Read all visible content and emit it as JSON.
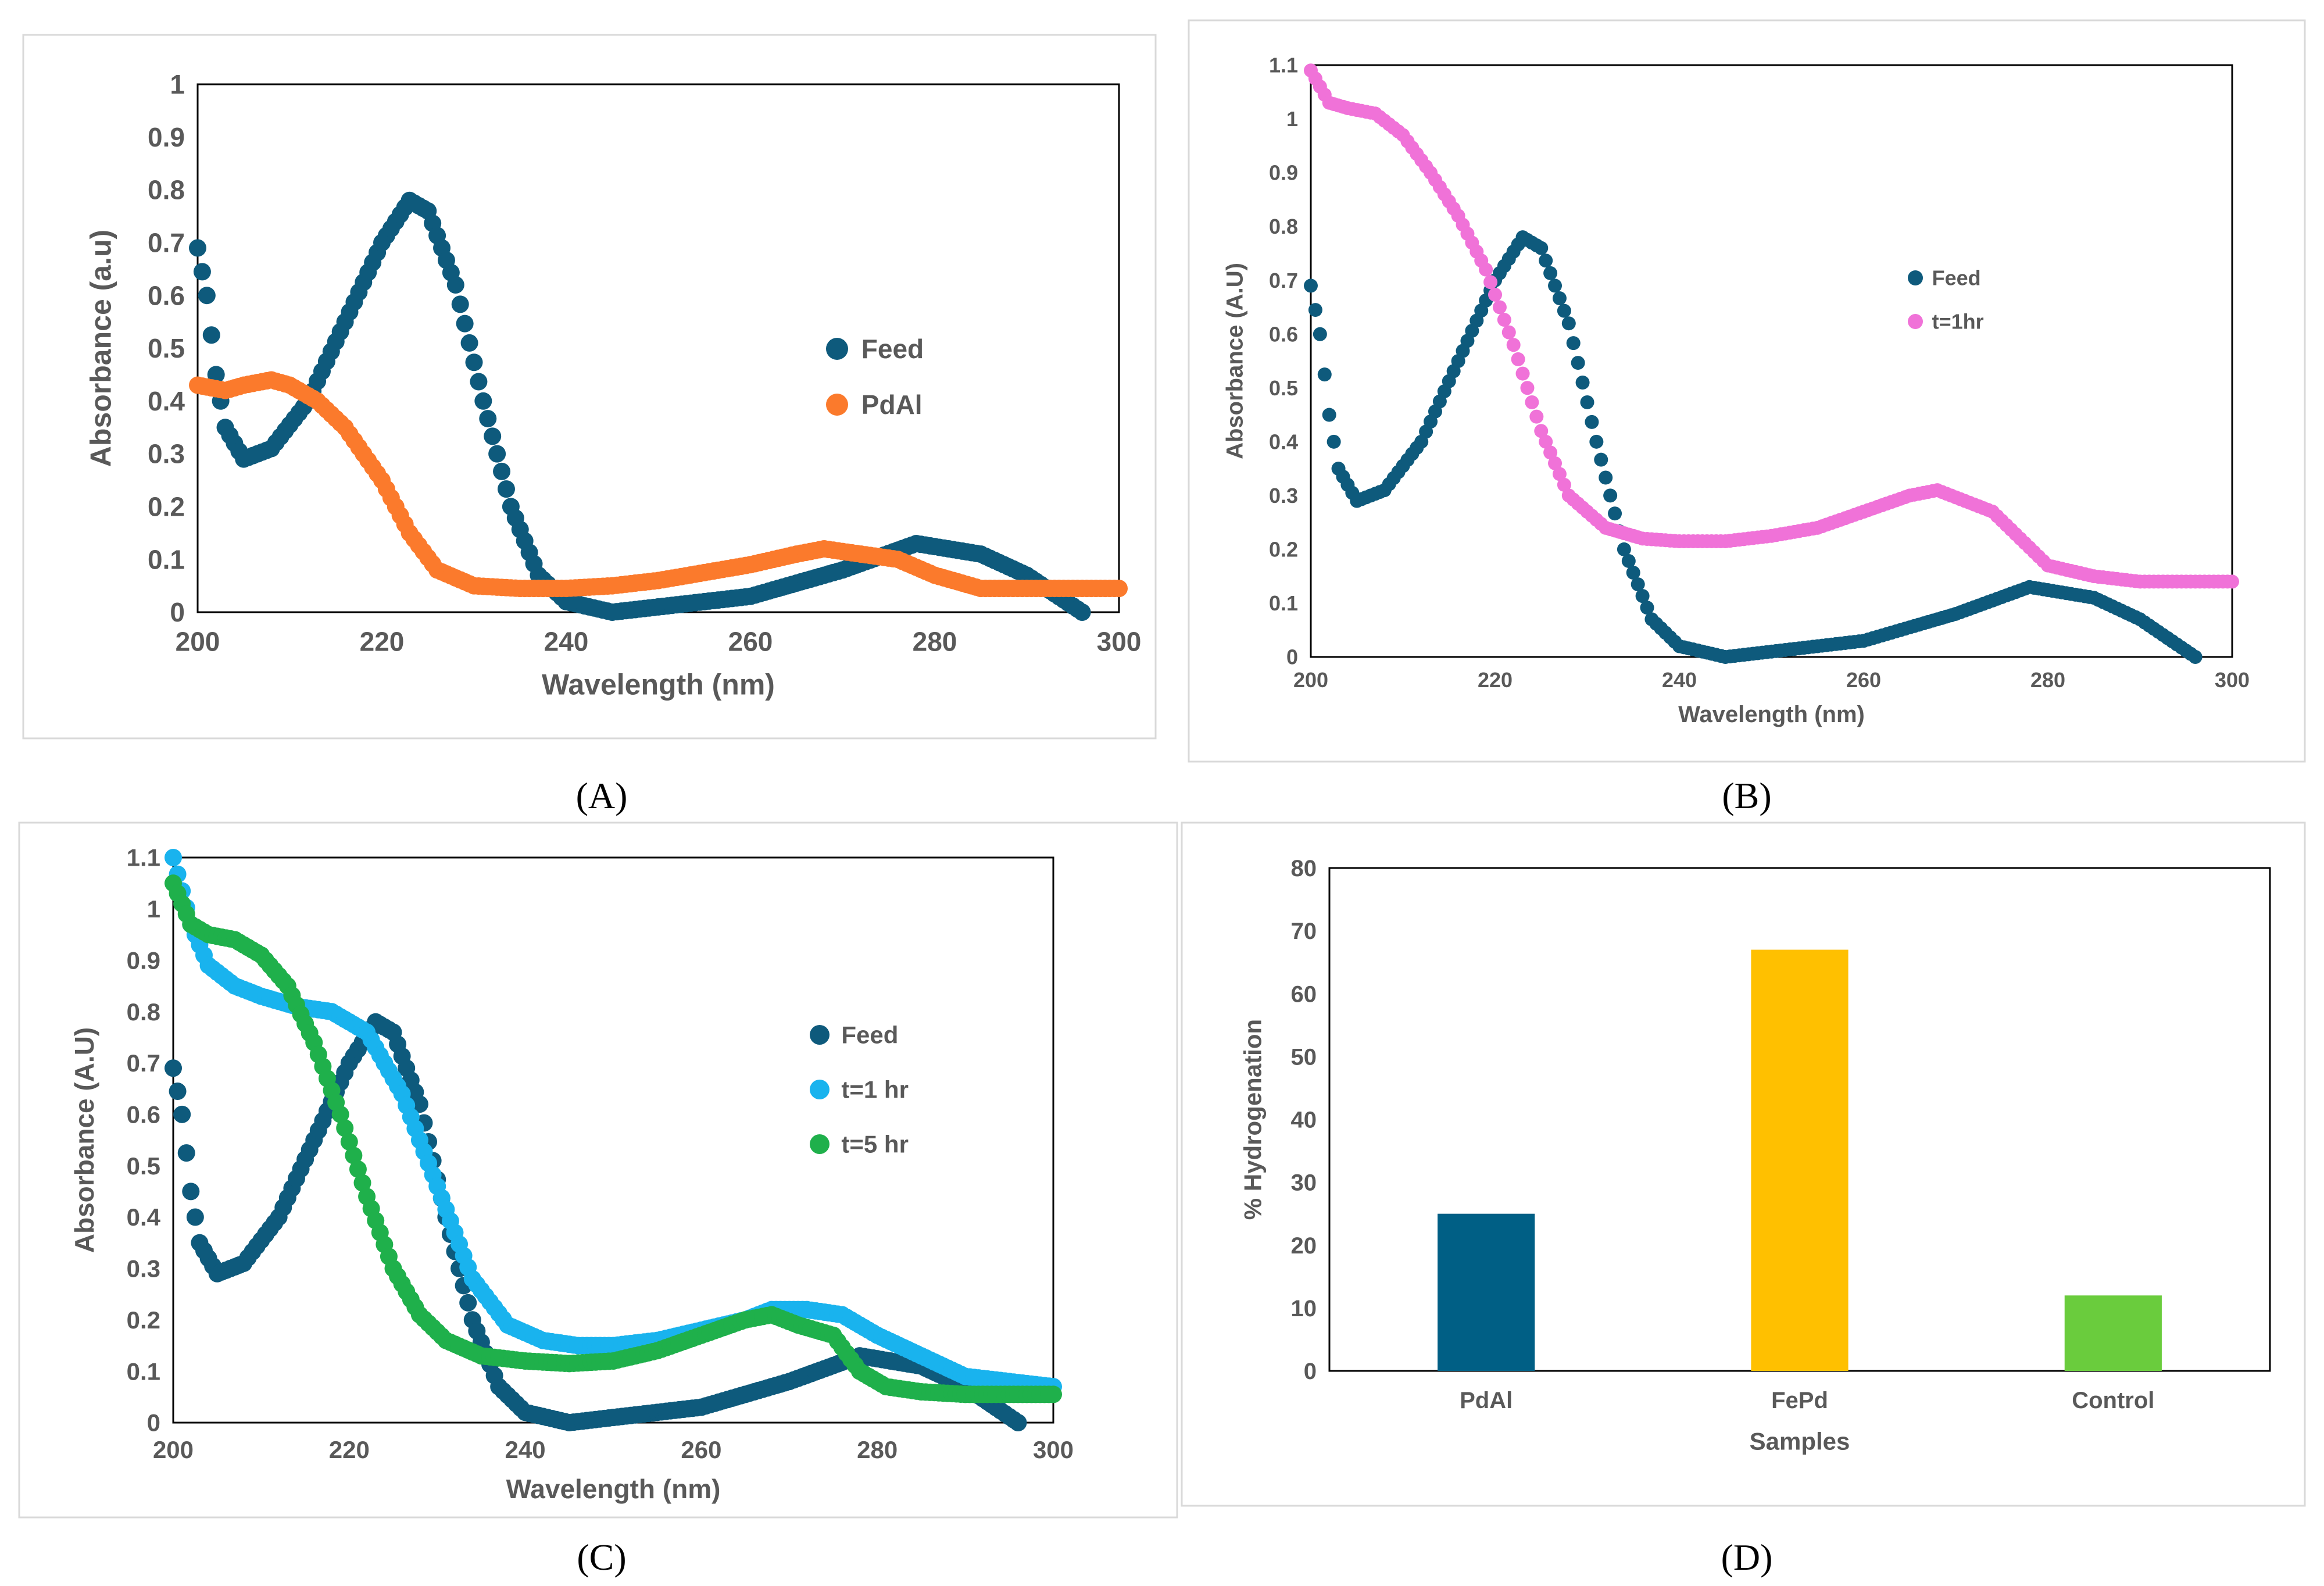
{
  "colors": {
    "feed": "#0e5a7c",
    "pdal": "#fb7a2c",
    "t1hr_b": "#f072d8",
    "t1hr_c": "#19b3ee",
    "t5hr": "#1fb04b",
    "bar_pdal": "#005f85",
    "bar_fepd": "#ffc000",
    "bar_control": "#6acc3d",
    "axis_text": "#595959"
  },
  "panel_labels": [
    "(A)",
    "(B)",
    "(C)",
    "(D)"
  ],
  "chart_data": [
    {
      "id": "A",
      "type": "scatter",
      "title": "",
      "xlabel": "Wavelength (nm)",
      "ylabel": "Absorbance (a.u)",
      "xlim": [
        200,
        300
      ],
      "ylim": [
        0,
        1
      ],
      "xticks": [
        200,
        220,
        240,
        260,
        280,
        300
      ],
      "yticks": [
        0,
        0.1,
        0.2,
        0.3,
        0.4,
        0.5,
        0.6,
        0.7,
        0.8,
        0.9,
        1
      ],
      "ytick_labels": [
        "0",
        "0.1",
        "0.2",
        "0.3",
        "0.4",
        "0.5",
        "0.6",
        "0.7",
        "0.8",
        "0.9",
        "1"
      ],
      "legend": [
        "Feed",
        "PdAl"
      ],
      "legend_position": "right",
      "series": [
        {
          "name": "Feed",
          "color_key": "feed",
          "x": [
            200,
            201,
            202,
            203,
            205,
            208,
            212,
            216,
            220,
            223,
            225,
            228,
            231,
            234,
            237,
            240,
            245,
            250,
            260,
            270,
            278,
            285,
            290,
            296
          ],
          "y": [
            0.69,
            0.6,
            0.45,
            0.35,
            0.29,
            0.31,
            0.4,
            0.55,
            0.7,
            0.78,
            0.76,
            0.62,
            0.4,
            0.2,
            0.07,
            0.02,
            0.0,
            0.01,
            0.03,
            0.08,
            0.13,
            0.11,
            0.07,
            0.0
          ]
        },
        {
          "name": "PdAl",
          "color_key": "pdal",
          "x": [
            200,
            203,
            205,
            208,
            210,
            213,
            216,
            220,
            223,
            226,
            230,
            235,
            240,
            245,
            250,
            255,
            260,
            265,
            268,
            272,
            276,
            280,
            285,
            290,
            300
          ],
          "y": [
            0.43,
            0.42,
            0.43,
            0.44,
            0.43,
            0.4,
            0.35,
            0.25,
            0.15,
            0.08,
            0.05,
            0.045,
            0.045,
            0.05,
            0.06,
            0.075,
            0.09,
            0.11,
            0.12,
            0.11,
            0.1,
            0.07,
            0.045,
            0.045,
            0.045
          ]
        }
      ]
    },
    {
      "id": "B",
      "type": "scatter",
      "title": "",
      "xlabel": "Wavelength (nm)",
      "ylabel": "Absorbance (A.U)",
      "xlim": [
        200,
        300
      ],
      "ylim": [
        0,
        1.1
      ],
      "xticks": [
        200,
        220,
        240,
        260,
        280,
        300
      ],
      "yticks": [
        0,
        0.1,
        0.2,
        0.3,
        0.4,
        0.5,
        0.6,
        0.7,
        0.8,
        0.9,
        1,
        1.1
      ],
      "ytick_labels": [
        "0",
        "0.1",
        "0.2",
        "0.3",
        "0.4",
        "0.5",
        "0.6",
        "0.7",
        "0.8",
        "0.9",
        "1",
        "1.1"
      ],
      "legend": [
        "Feed",
        "t=1hr"
      ],
      "legend_position": "right",
      "series": [
        {
          "name": "Feed",
          "color_key": "feed",
          "x": [
            200,
            201,
            202,
            203,
            205,
            208,
            212,
            216,
            220,
            223,
            225,
            228,
            231,
            234,
            237,
            240,
            245,
            250,
            260,
            270,
            278,
            285,
            290,
            296
          ],
          "y": [
            0.69,
            0.6,
            0.45,
            0.35,
            0.29,
            0.31,
            0.4,
            0.55,
            0.7,
            0.78,
            0.76,
            0.62,
            0.4,
            0.2,
            0.07,
            0.02,
            0.0,
            0.01,
            0.03,
            0.08,
            0.13,
            0.11,
            0.07,
            0.0
          ]
        },
        {
          "name": "t=1hr",
          "color_key": "t1hr_b",
          "x": [
            200,
            202,
            204,
            207,
            210,
            213,
            216,
            219,
            222,
            225,
            228,
            232,
            236,
            240,
            245,
            250,
            255,
            260,
            265,
            268,
            271,
            274,
            277,
            280,
            285,
            290,
            300
          ],
          "y": [
            1.09,
            1.03,
            1.02,
            1.01,
            0.97,
            0.9,
            0.82,
            0.72,
            0.58,
            0.42,
            0.3,
            0.24,
            0.22,
            0.215,
            0.215,
            0.225,
            0.24,
            0.27,
            0.3,
            0.31,
            0.29,
            0.27,
            0.22,
            0.17,
            0.15,
            0.14,
            0.14
          ]
        }
      ]
    },
    {
      "id": "C",
      "type": "scatter",
      "title": "",
      "xlabel": "Wavelength (nm)",
      "ylabel": "Absorbance (A.U)",
      "xlim": [
        200,
        300
      ],
      "ylim": [
        0,
        1.1
      ],
      "xticks": [
        200,
        220,
        240,
        260,
        280,
        300
      ],
      "yticks": [
        0,
        0.1,
        0.2,
        0.3,
        0.4,
        0.5,
        0.6,
        0.7,
        0.8,
        0.9,
        1,
        1.1
      ],
      "ytick_labels": [
        "0",
        "0.1",
        "0.2",
        "0.3",
        "0.4",
        "0.5",
        "0.6",
        "0.7",
        "0.8",
        "0.9",
        "1",
        "1.1"
      ],
      "legend": [
        "Feed",
        "t=1 hr",
        "t=5 hr"
      ],
      "legend_position": "right",
      "series": [
        {
          "name": "Feed",
          "color_key": "feed",
          "x": [
            200,
            201,
            202,
            203,
            205,
            208,
            212,
            216,
            220,
            223,
            225,
            228,
            231,
            234,
            237,
            240,
            245,
            250,
            260,
            270,
            278,
            285,
            290,
            296
          ],
          "y": [
            0.69,
            0.6,
            0.45,
            0.35,
            0.29,
            0.31,
            0.4,
            0.55,
            0.7,
            0.78,
            0.76,
            0.62,
            0.4,
            0.2,
            0.07,
            0.02,
            0.0,
            0.01,
            0.03,
            0.08,
            0.13,
            0.11,
            0.07,
            0.0
          ]
        },
        {
          "name": "t=1 hr",
          "color_key": "t1hr_c",
          "x": [
            200,
            202,
            204,
            207,
            210,
            214,
            218,
            222,
            226,
            230,
            234,
            238,
            242,
            246,
            250,
            255,
            260,
            265,
            268,
            272,
            276,
            280,
            285,
            290,
            300
          ],
          "y": [
            1.1,
            0.97,
            0.89,
            0.85,
            0.83,
            0.81,
            0.8,
            0.76,
            0.64,
            0.46,
            0.28,
            0.19,
            0.16,
            0.15,
            0.15,
            0.16,
            0.18,
            0.2,
            0.22,
            0.22,
            0.21,
            0.17,
            0.13,
            0.09,
            0.07
          ]
        },
        {
          "name": "t=5 hr",
          "color_key": "t5hr",
          "x": [
            200,
            202,
            204,
            207,
            210,
            213,
            216,
            219,
            222,
            225,
            228,
            231,
            235,
            240,
            245,
            250,
            255,
            260,
            265,
            268,
            271,
            275,
            278,
            281,
            285,
            290,
            300
          ],
          "y": [
            1.05,
            0.97,
            0.95,
            0.94,
            0.91,
            0.85,
            0.74,
            0.6,
            0.44,
            0.3,
            0.21,
            0.16,
            0.13,
            0.12,
            0.115,
            0.12,
            0.14,
            0.17,
            0.2,
            0.21,
            0.19,
            0.17,
            0.1,
            0.07,
            0.06,
            0.055,
            0.055
          ]
        }
      ]
    },
    {
      "id": "D",
      "type": "bar",
      "title": "",
      "xlabel": "Samples",
      "ylabel": "% Hydrogenation",
      "ylim": [
        0,
        80
      ],
      "yticks": [
        0,
        10,
        20,
        30,
        40,
        50,
        60,
        70,
        80
      ],
      "ytick_labels": [
        "0",
        "10",
        "20",
        "30",
        "40",
        "50",
        "60",
        "70",
        "80"
      ],
      "categories": [
        "PdAl",
        "FePd",
        "Control"
      ],
      "values": [
        25,
        67,
        12
      ],
      "color_keys": [
        "bar_pdal",
        "bar_fepd",
        "bar_control"
      ]
    }
  ]
}
